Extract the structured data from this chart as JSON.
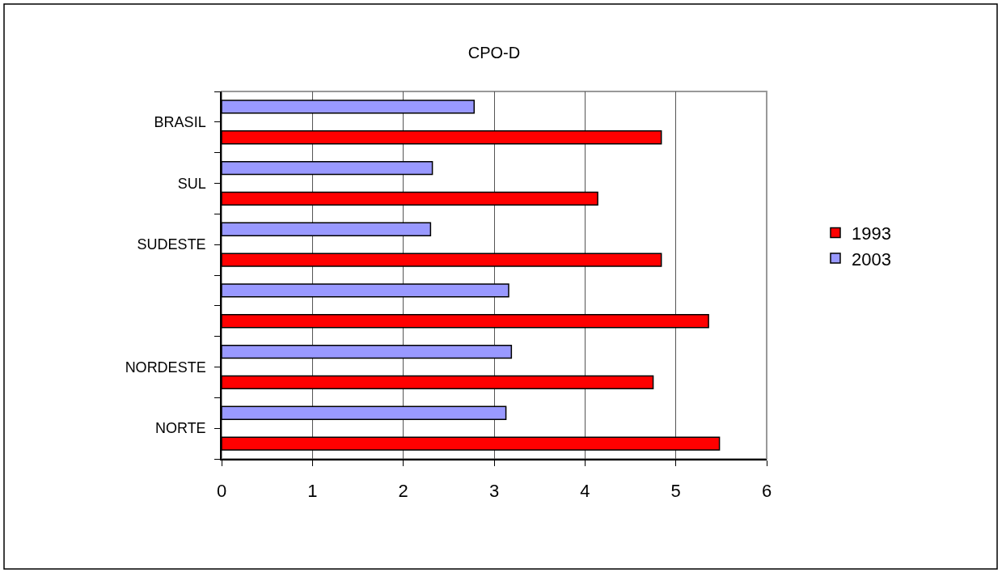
{
  "chart_data": {
    "type": "bar",
    "orientation": "horizontal",
    "title": "CPO-D",
    "categories": [
      "BRASIL",
      "SUL",
      "SUDESTE",
      null,
      "NORDESTE",
      "NORTE"
    ],
    "series": [
      {
        "name": "1993",
        "color": "#ff0000",
        "values": [
          4.84,
          4.14,
          4.84,
          5.36,
          4.75,
          5.48
        ]
      },
      {
        "name": "2003",
        "color": "#9999ff",
        "values": [
          2.78,
          2.32,
          2.3,
          3.16,
          3.19,
          3.13
        ]
      }
    ],
    "xlim": [
      0,
      6
    ],
    "xticks": [
      0,
      1,
      2,
      3,
      4,
      5,
      6
    ],
    "grid": "x",
    "legend": "right"
  }
}
